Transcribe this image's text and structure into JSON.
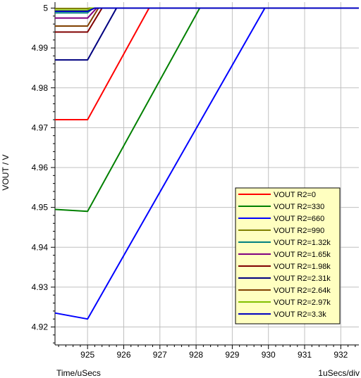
{
  "chart_data": {
    "type": "line",
    "title": "",
    "xlabel": "Time/uSecs",
    "x_scale_note": "1uSecs/div",
    "ylabel": "VOUT / V",
    "xlim": [
      924.1,
      932.5
    ],
    "ylim": [
      4.9155,
      5.0015
    ],
    "x_ticks": [
      925,
      926,
      927,
      928,
      929,
      930,
      931,
      932
    ],
    "x_tick_labels": [
      "925",
      "926",
      "927",
      "928",
      "929",
      "930",
      "931",
      "932"
    ],
    "y_ticks": [
      4.92,
      4.93,
      4.94,
      4.95,
      4.96,
      4.97,
      4.98,
      4.99,
      5.0
    ],
    "y_tick_labels": [
      "4.92",
      "4.93",
      "4.94",
      "4.95",
      "4.96",
      "4.97",
      "4.98",
      "4.99",
      "5"
    ],
    "grid": true,
    "legend_position": "bottom-right",
    "series": [
      {
        "name": "VOUT R2=0",
        "color": "#ff0000",
        "x": [
          924.1,
          925.0,
          926.7,
          932.5
        ],
        "y": [
          4.972,
          4.972,
          5.0,
          5.0
        ]
      },
      {
        "name": "VOUT R2=330",
        "color": "#008000",
        "x": [
          924.1,
          925.0,
          928.1,
          932.5
        ],
        "y": [
          4.9495,
          4.949,
          5.0,
          5.0
        ]
      },
      {
        "name": "VOUT R2=660",
        "color": "#0000ff",
        "x": [
          924.1,
          925.0,
          929.9,
          932.5
        ],
        "y": [
          4.9235,
          4.922,
          5.0,
          5.0
        ]
      },
      {
        "name": "VOUT R2=990",
        "color": "#808000",
        "x": [
          924.1,
          925.0,
          925.05,
          932.5
        ],
        "y": [
          4.9999,
          4.9999,
          5.0,
          5.0
        ]
      },
      {
        "name": "VOUT R2=1.32k",
        "color": "#008080",
        "x": [
          924.1,
          925.0,
          925.15,
          932.5
        ],
        "y": [
          4.9988,
          4.9988,
          5.0,
          5.0
        ]
      },
      {
        "name": "VOUT R2=1.65k",
        "color": "#800080",
        "x": [
          924.1,
          925.0,
          925.25,
          932.5
        ],
        "y": [
          4.9975,
          4.9975,
          5.0,
          5.0
        ]
      },
      {
        "name": "VOUT R2=1.98k",
        "color": "#800000",
        "x": [
          924.1,
          925.0,
          925.4,
          932.5
        ],
        "y": [
          4.994,
          4.994,
          5.0,
          5.0
        ]
      },
      {
        "name": "VOUT R2=2.31k",
        "color": "#000080",
        "x": [
          924.1,
          925.0,
          925.8,
          932.5
        ],
        "y": [
          4.987,
          4.987,
          5.0,
          5.0
        ]
      },
      {
        "name": "VOUT R2=2.64k",
        "color": "#804000",
        "x": [
          924.1,
          925.0,
          925.3,
          932.5
        ],
        "y": [
          4.9955,
          4.9955,
          5.0,
          5.0
        ]
      },
      {
        "name": "VOUT R2=2.97k",
        "color": "#80c000",
        "x": [
          924.1,
          925.0,
          925.1,
          932.5
        ],
        "y": [
          4.9995,
          4.9995,
          5.0,
          5.0
        ]
      },
      {
        "name": "VOUT R2=3.3k",
        "color": "#0000c0",
        "x": [
          924.1,
          925.0,
          925.2,
          932.5
        ],
        "y": [
          4.9992,
          4.9992,
          5.0,
          5.0
        ]
      }
    ]
  },
  "colors": {
    "plot_background": "#ffffff",
    "grid": "#c0c0c0",
    "legend_background": "#ffffc0",
    "legend_border": "#000000"
  }
}
